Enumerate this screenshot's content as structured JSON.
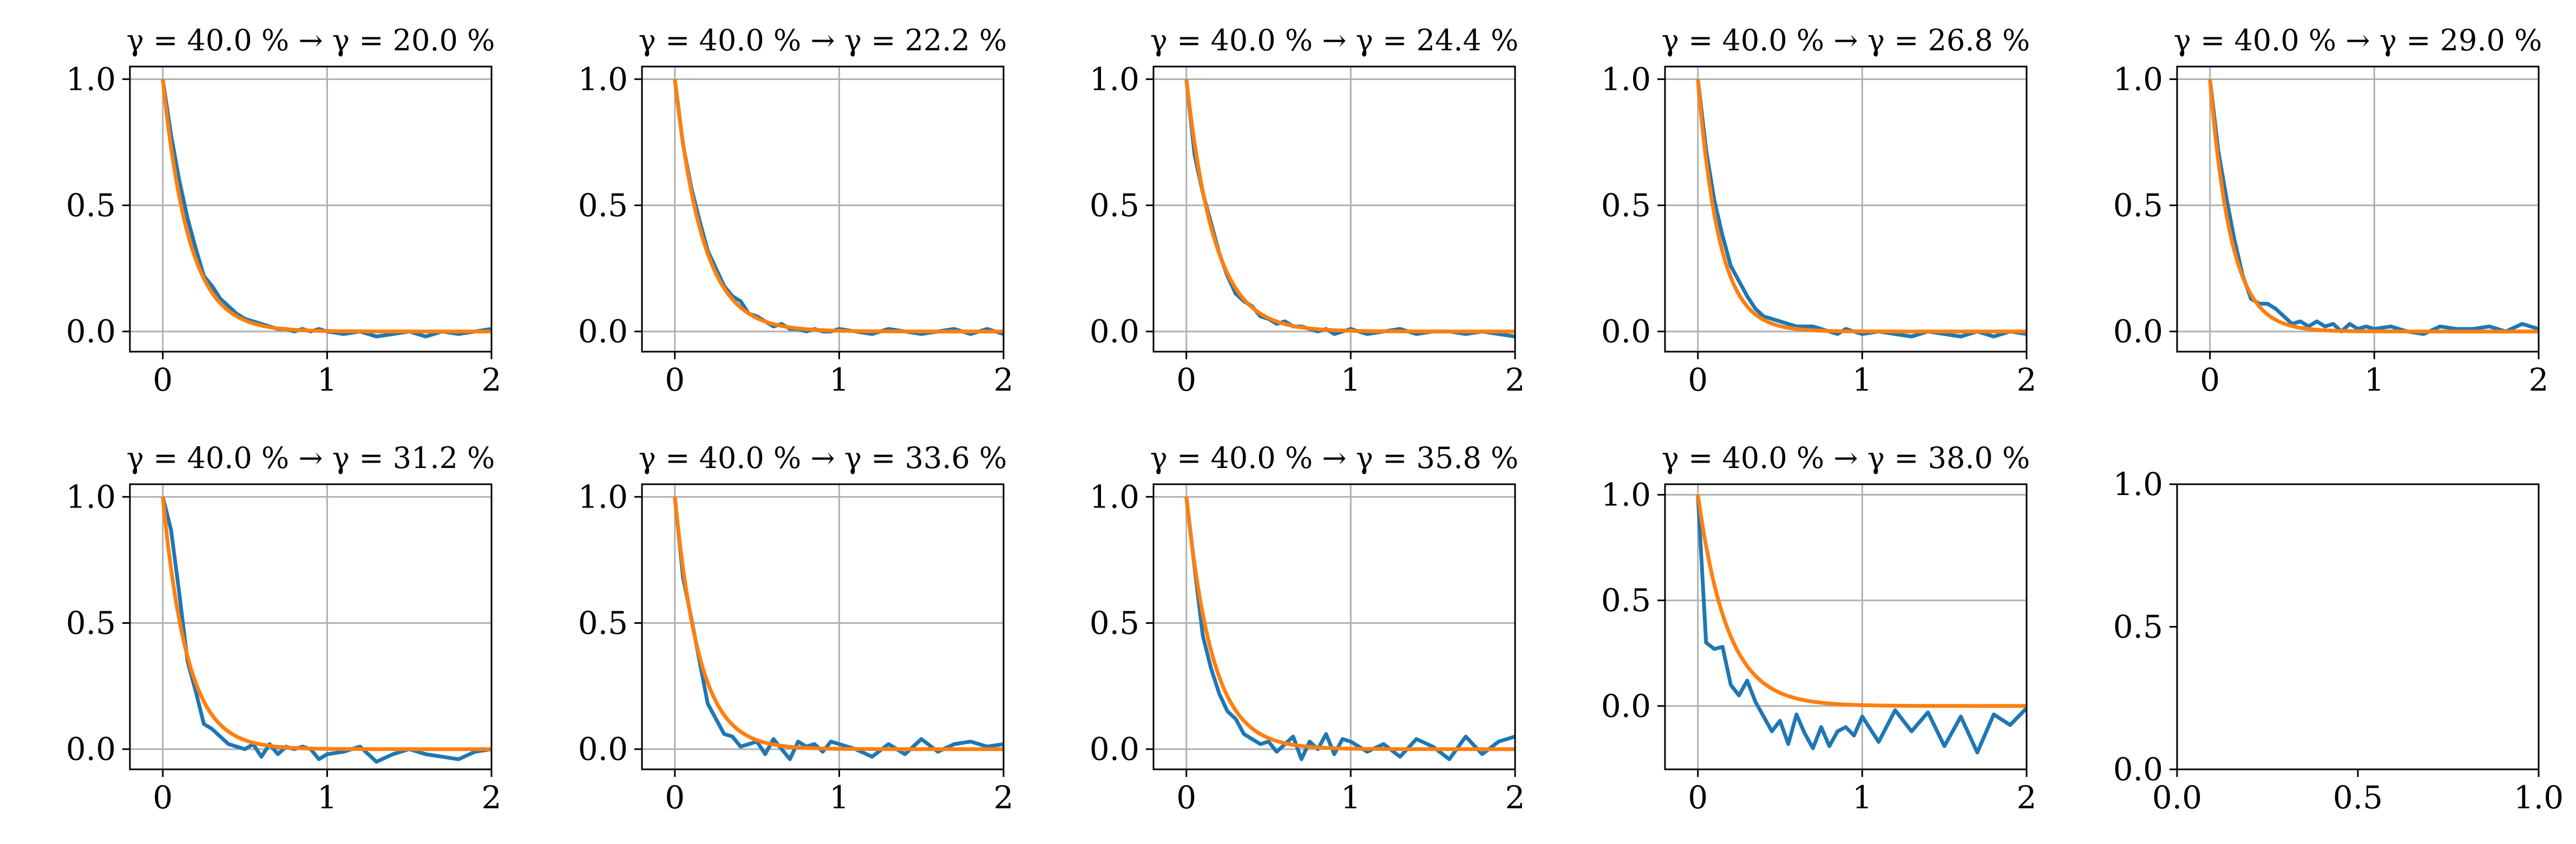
{
  "figure": {
    "background": "#ffffff",
    "grid": true,
    "grid_color": "#b0b0b0",
    "series_colors": {
      "measured": "#1f77b4",
      "fit": "#ff7f0e"
    }
  },
  "chart_data": [
    {
      "type": "line",
      "title": "γ = 40.0 % → γ = 20.0 %",
      "xlim": [
        -0.2,
        2.0
      ],
      "ylim": [
        -0.08,
        1.05
      ],
      "xticks": [
        0,
        1,
        2
      ],
      "xtick_labels": [
        "0",
        "1",
        "2"
      ],
      "yticks": [
        0,
        0.5,
        1
      ],
      "ytick_labels": [
        "0.0",
        "0.5",
        "1.0"
      ],
      "series": [
        {
          "color": "#1f77b4",
          "x": [
            0,
            0.05,
            0.1,
            0.15,
            0.2,
            0.25,
            0.3,
            0.35,
            0.4,
            0.45,
            0.5,
            0.55,
            0.6,
            0.65,
            0.7,
            0.75,
            0.8,
            0.85,
            0.9,
            0.95,
            1.0,
            1.1,
            1.2,
            1.3,
            1.4,
            1.5,
            1.6,
            1.7,
            1.8,
            1.9,
            2.0
          ],
          "y": [
            1.0,
            0.78,
            0.6,
            0.45,
            0.33,
            0.22,
            0.18,
            0.13,
            0.1,
            0.07,
            0.05,
            0.04,
            0.03,
            0.02,
            0.01,
            0.01,
            0.0,
            0.01,
            0.0,
            0.01,
            0.0,
            -0.01,
            0.0,
            -0.02,
            -0.01,
            0.0,
            -0.02,
            0.0,
            -0.01,
            0.0,
            0.01
          ]
        },
        {
          "color": "#ff7f0e",
          "fit_tau": 0.16,
          "x_range": [
            0,
            2
          ]
        }
      ]
    },
    {
      "type": "line",
      "title": "γ = 40.0 % → γ = 22.2 %",
      "xlim": [
        -0.2,
        2.0
      ],
      "ylim": [
        -0.08,
        1.05
      ],
      "xticks": [
        0,
        1,
        2
      ],
      "xtick_labels": [
        "0",
        "1",
        "2"
      ],
      "yticks": [
        0,
        0.5,
        1
      ],
      "ytick_labels": [
        "0.0",
        "0.5",
        "1.0"
      ],
      "series": [
        {
          "color": "#1f77b4",
          "x": [
            0,
            0.05,
            0.1,
            0.15,
            0.2,
            0.25,
            0.3,
            0.35,
            0.4,
            0.45,
            0.5,
            0.55,
            0.6,
            0.65,
            0.7,
            0.75,
            0.8,
            0.85,
            0.9,
            0.95,
            1.0,
            1.1,
            1.2,
            1.3,
            1.4,
            1.5,
            1.6,
            1.7,
            1.8,
            1.9,
            2.0
          ],
          "y": [
            1.0,
            0.74,
            0.57,
            0.44,
            0.32,
            0.25,
            0.18,
            0.14,
            0.12,
            0.07,
            0.06,
            0.04,
            0.02,
            0.03,
            0.01,
            0.01,
            0.0,
            0.01,
            0.0,
            0.0,
            0.01,
            0.0,
            -0.01,
            0.01,
            0.0,
            -0.01,
            0.0,
            0.01,
            -0.01,
            0.01,
            -0.01
          ]
        },
        {
          "color": "#ff7f0e",
          "fit_tau": 0.17,
          "x_range": [
            0,
            2
          ]
        }
      ]
    },
    {
      "type": "line",
      "title": "γ = 40.0 % → γ = 24.4 %",
      "xlim": [
        -0.2,
        2.0
      ],
      "ylim": [
        -0.08,
        1.05
      ],
      "xticks": [
        0,
        1,
        2
      ],
      "xtick_labels": [
        "0",
        "1",
        "2"
      ],
      "yticks": [
        0,
        0.5,
        1
      ],
      "ytick_labels": [
        "0.0",
        "0.5",
        "1.0"
      ],
      "series": [
        {
          "color": "#1f77b4",
          "x": [
            0,
            0.05,
            0.1,
            0.15,
            0.2,
            0.25,
            0.3,
            0.35,
            0.4,
            0.45,
            0.5,
            0.55,
            0.6,
            0.65,
            0.7,
            0.75,
            0.8,
            0.85,
            0.9,
            0.95,
            1.0,
            1.1,
            1.2,
            1.3,
            1.4,
            1.5,
            1.6,
            1.7,
            1.8,
            1.9,
            2.0
          ],
          "y": [
            1.0,
            0.7,
            0.55,
            0.43,
            0.31,
            0.22,
            0.15,
            0.12,
            0.1,
            0.06,
            0.05,
            0.03,
            0.04,
            0.02,
            0.02,
            0.01,
            0.0,
            0.01,
            -0.01,
            0.0,
            0.01,
            -0.01,
            0.0,
            0.01,
            -0.01,
            0.0,
            0.0,
            -0.01,
            0.0,
            -0.01,
            -0.02
          ]
        },
        {
          "color": "#ff7f0e",
          "fit_tau": 0.17,
          "x_range": [
            0,
            2
          ]
        }
      ]
    },
    {
      "type": "line",
      "title": "γ = 40.0 % → γ = 26.8 %",
      "xlim": [
        -0.2,
        2.0
      ],
      "ylim": [
        -0.08,
        1.05
      ],
      "xticks": [
        0,
        1,
        2
      ],
      "xtick_labels": [
        "0",
        "1",
        "2"
      ],
      "yticks": [
        0,
        0.5,
        1
      ],
      "ytick_labels": [
        "0.0",
        "0.5",
        "1.0"
      ],
      "series": [
        {
          "color": "#1f77b4",
          "x": [
            0,
            0.05,
            0.1,
            0.15,
            0.2,
            0.25,
            0.3,
            0.35,
            0.4,
            0.45,
            0.5,
            0.55,
            0.6,
            0.65,
            0.7,
            0.75,
            0.8,
            0.85,
            0.9,
            0.95,
            1.0,
            1.1,
            1.2,
            1.3,
            1.4,
            1.5,
            1.6,
            1.7,
            1.8,
            1.9,
            2.0
          ],
          "y": [
            1.0,
            0.72,
            0.52,
            0.38,
            0.26,
            0.2,
            0.14,
            0.09,
            0.06,
            0.05,
            0.04,
            0.03,
            0.02,
            0.02,
            0.02,
            0.01,
            0.0,
            -0.01,
            0.01,
            0.0,
            -0.01,
            0.0,
            -0.01,
            -0.02,
            0.0,
            -0.01,
            -0.02,
            0.0,
            -0.02,
            0.0,
            -0.01
          ]
        },
        {
          "color": "#ff7f0e",
          "fit_tau": 0.13,
          "x_range": [
            0,
            2
          ]
        }
      ]
    },
    {
      "type": "line",
      "title": "γ = 40.0 % → γ = 29.0 %",
      "xlim": [
        -0.2,
        2.0
      ],
      "ylim": [
        -0.08,
        1.05
      ],
      "xticks": [
        0,
        1,
        2
      ],
      "xtick_labels": [
        "0",
        "1",
        "2"
      ],
      "yticks": [
        0,
        0.5,
        1
      ],
      "ytick_labels": [
        "0.0",
        "0.5",
        "1.0"
      ],
      "series": [
        {
          "color": "#1f77b4",
          "x": [
            0,
            0.05,
            0.1,
            0.15,
            0.2,
            0.25,
            0.3,
            0.35,
            0.4,
            0.45,
            0.5,
            0.55,
            0.6,
            0.65,
            0.7,
            0.75,
            0.8,
            0.85,
            0.9,
            0.95,
            1.0,
            1.1,
            1.2,
            1.3,
            1.4,
            1.5,
            1.6,
            1.7,
            1.8,
            1.9,
            2.0
          ],
          "y": [
            1.0,
            0.72,
            0.53,
            0.36,
            0.22,
            0.13,
            0.11,
            0.11,
            0.09,
            0.06,
            0.03,
            0.04,
            0.02,
            0.04,
            0.02,
            0.03,
            0.0,
            0.03,
            0.01,
            0.02,
            0.01,
            0.02,
            0.0,
            -0.01,
            0.02,
            0.01,
            0.01,
            0.02,
            0.0,
            0.03,
            0.01
          ]
        },
        {
          "color": "#ff7f0e",
          "fit_tau": 0.13,
          "x_range": [
            0,
            2
          ]
        }
      ]
    },
    {
      "type": "line",
      "title": "γ = 40.0 % → γ = 31.2 %",
      "xlim": [
        -0.2,
        2.0
      ],
      "ylim": [
        -0.08,
        1.05
      ],
      "xticks": [
        0,
        1,
        2
      ],
      "xtick_labels": [
        "0",
        "1",
        "2"
      ],
      "yticks": [
        0,
        0.5,
        1
      ],
      "ytick_labels": [
        "0.0",
        "0.5",
        "1.0"
      ],
      "series": [
        {
          "color": "#1f77b4",
          "x": [
            0,
            0.05,
            0.1,
            0.15,
            0.2,
            0.25,
            0.3,
            0.35,
            0.4,
            0.45,
            0.5,
            0.55,
            0.6,
            0.65,
            0.7,
            0.75,
            0.8,
            0.85,
            0.9,
            0.95,
            1.0,
            1.1,
            1.2,
            1.3,
            1.4,
            1.5,
            1.6,
            1.7,
            1.8,
            1.9,
            2.0
          ],
          "y": [
            1.0,
            0.87,
            0.62,
            0.35,
            0.23,
            0.1,
            0.08,
            0.05,
            0.02,
            0.01,
            0.0,
            0.02,
            -0.03,
            0.02,
            -0.02,
            0.01,
            0.0,
            0.01,
            0.0,
            -0.04,
            -0.02,
            -0.01,
            0.01,
            -0.05,
            -0.02,
            0.0,
            -0.02,
            -0.03,
            -0.04,
            -0.01,
            0.0
          ]
        },
        {
          "color": "#ff7f0e",
          "fit_tau": 0.15,
          "x_range": [
            0,
            2
          ]
        }
      ]
    },
    {
      "type": "line",
      "title": "γ = 40.0 % → γ = 33.6 %",
      "xlim": [
        -0.2,
        2.0
      ],
      "ylim": [
        -0.08,
        1.05
      ],
      "xticks": [
        0,
        1,
        2
      ],
      "xtick_labels": [
        "0",
        "1",
        "2"
      ],
      "yticks": [
        0,
        0.5,
        1
      ],
      "ytick_labels": [
        "0.0",
        "0.5",
        "1.0"
      ],
      "series": [
        {
          "color": "#1f77b4",
          "x": [
            0,
            0.05,
            0.1,
            0.15,
            0.2,
            0.25,
            0.3,
            0.35,
            0.4,
            0.45,
            0.5,
            0.55,
            0.6,
            0.65,
            0.7,
            0.75,
            0.8,
            0.85,
            0.9,
            0.95,
            1.0,
            1.1,
            1.2,
            1.3,
            1.4,
            1.5,
            1.6,
            1.7,
            1.8,
            1.9,
            2.0
          ],
          "y": [
            1.0,
            0.68,
            0.52,
            0.35,
            0.18,
            0.12,
            0.06,
            0.05,
            0.01,
            0.02,
            0.03,
            -0.02,
            0.04,
            0.0,
            -0.04,
            0.03,
            0.01,
            0.02,
            -0.01,
            0.03,
            0.02,
            0.0,
            -0.03,
            0.02,
            -0.02,
            0.04,
            -0.01,
            0.02,
            0.03,
            0.01,
            0.02
          ]
        },
        {
          "color": "#ff7f0e",
          "fit_tau": 0.15,
          "x_range": [
            0,
            2
          ]
        }
      ]
    },
    {
      "type": "line",
      "title": "γ = 40.0 % → γ = 35.8 %",
      "xlim": [
        -0.2,
        2.0
      ],
      "ylim": [
        -0.08,
        1.05
      ],
      "xticks": [
        0,
        1,
        2
      ],
      "xtick_labels": [
        "0",
        "1",
        "2"
      ],
      "yticks": [
        0,
        0.5,
        1
      ],
      "ytick_labels": [
        "0.0",
        "0.5",
        "1.0"
      ],
      "series": [
        {
          "color": "#1f77b4",
          "x": [
            0,
            0.05,
            0.1,
            0.15,
            0.2,
            0.25,
            0.3,
            0.35,
            0.4,
            0.45,
            0.5,
            0.55,
            0.6,
            0.65,
            0.7,
            0.75,
            0.8,
            0.85,
            0.9,
            0.95,
            1.0,
            1.1,
            1.2,
            1.3,
            1.4,
            1.5,
            1.6,
            1.7,
            1.8,
            1.9,
            2.0
          ],
          "y": [
            1.0,
            0.72,
            0.45,
            0.32,
            0.22,
            0.15,
            0.12,
            0.06,
            0.04,
            0.02,
            0.03,
            -0.01,
            0.02,
            0.05,
            -0.04,
            0.03,
            0.0,
            0.06,
            -0.02,
            0.04,
            0.03,
            -0.01,
            0.02,
            -0.03,
            0.04,
            0.01,
            -0.04,
            0.05,
            -0.02,
            0.03,
            0.05
          ]
        },
        {
          "color": "#ff7f0e",
          "fit_tau": 0.16,
          "x_range": [
            0,
            2
          ]
        }
      ]
    },
    {
      "type": "line",
      "title": "γ = 40.0 % → γ = 38.0 %",
      "xlim": [
        -0.2,
        2.0
      ],
      "ylim": [
        -0.3,
        1.05
      ],
      "xticks": [
        0,
        1,
        2
      ],
      "xtick_labels": [
        "0",
        "1",
        "2"
      ],
      "yticks": [
        0,
        0.5,
        1
      ],
      "ytick_labels": [
        "0.0",
        "0.5",
        "1.0"
      ],
      "series": [
        {
          "color": "#1f77b4",
          "x": [
            0,
            0.05,
            0.1,
            0.15,
            0.2,
            0.25,
            0.3,
            0.35,
            0.4,
            0.45,
            0.5,
            0.55,
            0.6,
            0.65,
            0.7,
            0.75,
            0.8,
            0.85,
            0.9,
            0.95,
            1.0,
            1.1,
            1.2,
            1.3,
            1.4,
            1.5,
            1.6,
            1.7,
            1.8,
            1.9,
            2.0
          ],
          "y": [
            1.0,
            0.3,
            0.27,
            0.28,
            0.1,
            0.05,
            0.12,
            0.02,
            -0.05,
            -0.12,
            -0.07,
            -0.18,
            -0.04,
            -0.13,
            -0.2,
            -0.1,
            -0.19,
            -0.12,
            -0.1,
            -0.14,
            -0.05,
            -0.17,
            -0.02,
            -0.12,
            -0.03,
            -0.19,
            -0.05,
            -0.22,
            -0.04,
            -0.09,
            -0.01
          ]
        },
        {
          "color": "#ff7f0e",
          "fit_tau": 0.18,
          "x_range": [
            0,
            2
          ]
        }
      ]
    },
    {
      "type": "line",
      "title": "",
      "xlim": [
        0.0,
        1.0
      ],
      "ylim": [
        0.0,
        1.0
      ],
      "xticks": [
        0,
        0.5,
        1
      ],
      "xtick_labels": [
        "0.0",
        "0.5",
        "1.0"
      ],
      "yticks": [
        0,
        0.5,
        1
      ],
      "ytick_labels": [
        "0.0",
        "0.5",
        "1.0"
      ],
      "grid": false,
      "series": []
    }
  ]
}
